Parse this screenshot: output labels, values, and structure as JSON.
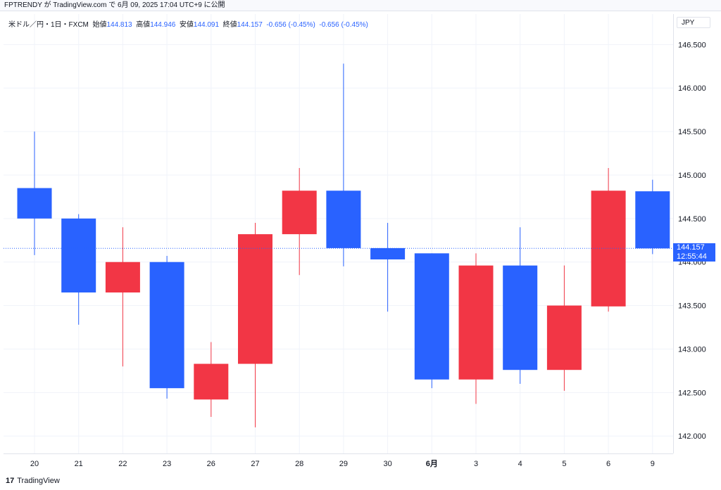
{
  "header": {
    "text": "FPTRENDY が TradingView.com で 6月 09, 2025 17:04 UTC+9 に公開"
  },
  "legend": {
    "symbol": "米ドル／円・1日・FXCM",
    "open_label": "始値",
    "open": "144.813",
    "high_label": "高値",
    "high": "144.946",
    "low_label": "安値",
    "low": "144.091",
    "close_label": "終値",
    "close": "144.157",
    "change": "-0.656 (-0.45%)",
    "change2": "-0.656 (-0.45%)"
  },
  "currency": "JPY",
  "current_price": {
    "price": "144.157",
    "countdown": "12:55:44",
    "value": 144.157
  },
  "footer": {
    "logo": "17",
    "brand": "TradingView"
  },
  "colors": {
    "up": "#f23645",
    "down": "#2962ff",
    "grid": "#f0f3fa",
    "current_line": "#2962ff"
  },
  "chart_data": {
    "type": "candlestick",
    "x_labels": [
      "20",
      "21",
      "22",
      "23",
      "26",
      "27",
      "28",
      "29",
      "30",
      "6月",
      "3",
      "4",
      "5",
      "6",
      "9"
    ],
    "ohlc": [
      {
        "o": 144.85,
        "h": 145.5,
        "l": 144.08,
        "c": 144.5
      },
      {
        "o": 144.5,
        "h": 144.55,
        "l": 143.28,
        "c": 143.65
      },
      {
        "o": 143.65,
        "h": 144.4,
        "l": 142.8,
        "c": 144.0
      },
      {
        "o": 144.0,
        "h": 144.07,
        "l": 142.43,
        "c": 142.55
      },
      {
        "o": 142.42,
        "h": 143.08,
        "l": 142.22,
        "c": 142.83
      },
      {
        "o": 142.83,
        "h": 144.45,
        "l": 142.1,
        "c": 144.32
      },
      {
        "o": 144.32,
        "h": 145.08,
        "l": 143.85,
        "c": 144.82
      },
      {
        "o": 144.82,
        "h": 146.28,
        "l": 143.95,
        "c": 144.16
      },
      {
        "o": 144.16,
        "h": 144.45,
        "l": 143.43,
        "c": 144.03
      },
      {
        "o": 144.1,
        "h": 144.1,
        "l": 142.55,
        "c": 142.65
      },
      {
        "o": 142.65,
        "h": 144.1,
        "l": 142.37,
        "c": 143.96
      },
      {
        "o": 143.96,
        "h": 144.4,
        "l": 142.6,
        "c": 142.76
      },
      {
        "o": 142.76,
        "h": 143.96,
        "l": 142.52,
        "c": 143.5
      },
      {
        "o": 143.49,
        "h": 145.08,
        "l": 143.43,
        "c": 144.82
      },
      {
        "o": 144.813,
        "h": 144.946,
        "l": 144.091,
        "c": 144.157
      }
    ],
    "y_ticks": [
      "146.500",
      "146.000",
      "145.500",
      "145.000",
      "144.500",
      "144.000",
      "143.500",
      "143.000",
      "142.500",
      "142.000"
    ],
    "y_tick_values": [
      146.5,
      146.0,
      145.5,
      145.0,
      144.5,
      144.0,
      143.5,
      143.0,
      142.5,
      142.0
    ],
    "ylim": [
      141.8,
      146.85
    ],
    "grid": true
  }
}
